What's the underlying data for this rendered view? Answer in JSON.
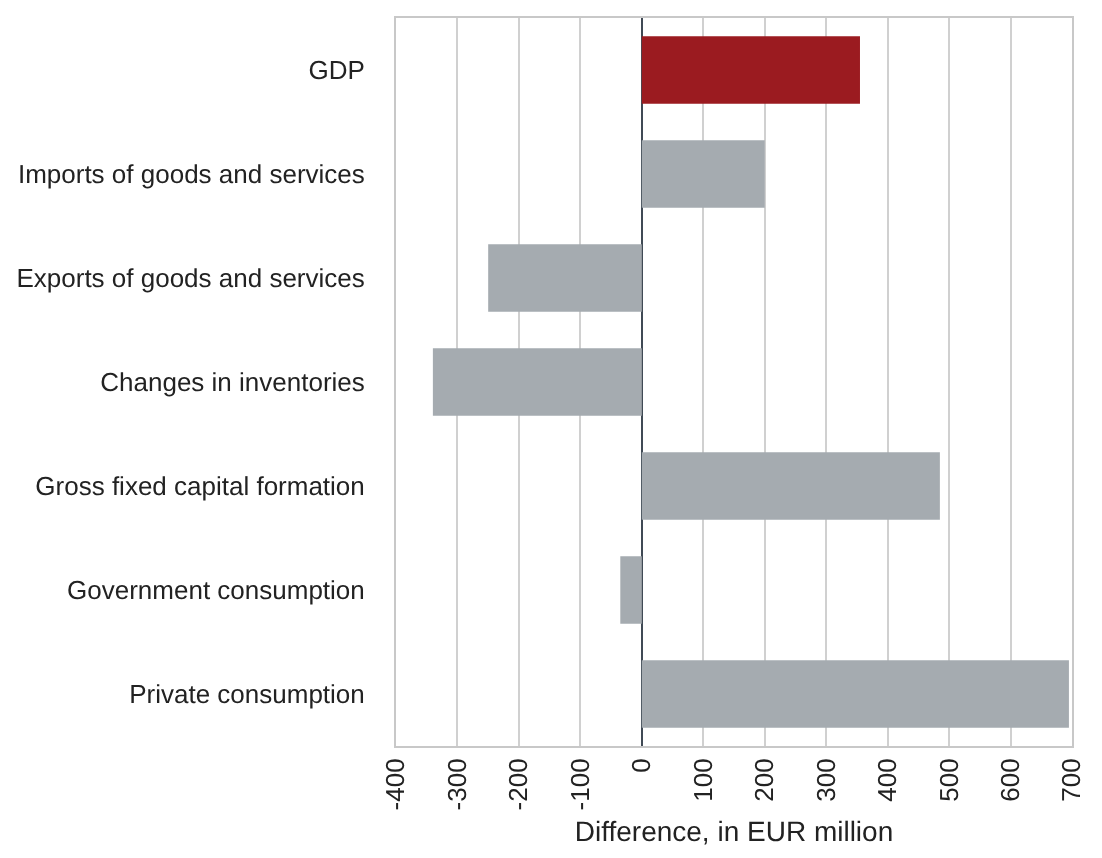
{
  "chart_data": {
    "type": "bar",
    "orientation": "horizontal",
    "categories": [
      "GDP",
      "Imports of goods and services",
      "Exports of goods and services",
      "Changes in inventories",
      "Gross fixed capital formation",
      "Government consumption",
      "Private consumption"
    ],
    "values": [
      355,
      200,
      -250,
      -340,
      485,
      -35,
      695
    ],
    "colors": [
      "#9b1b20",
      "#a5abb0",
      "#a5abb0",
      "#a5abb0",
      "#a5abb0",
      "#a5abb0",
      "#a5abb0"
    ],
    "xlabel": "Difference, in EUR million",
    "xlim": [
      -400,
      700
    ],
    "xticks": [
      -400,
      -300,
      -200,
      -100,
      0,
      100,
      200,
      300,
      400,
      500,
      600,
      700
    ],
    "grid": "x"
  }
}
